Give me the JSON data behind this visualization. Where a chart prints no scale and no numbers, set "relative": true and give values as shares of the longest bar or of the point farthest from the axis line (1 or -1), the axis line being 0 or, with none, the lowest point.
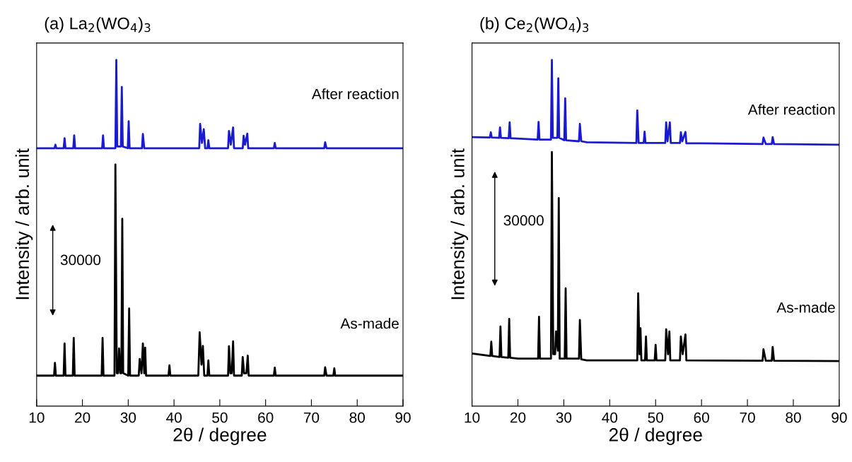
{
  "chart_data": [
    {
      "type": "line",
      "relative": true,
      "title": "(a) La$_{2}$(WO$_{4}$)$_{3}$",
      "xlabel": "2θ / degree",
      "ylabel": "Intensity / arb. unit",
      "xlim": [
        10,
        90
      ],
      "xticks": [
        10,
        20,
        30,
        40,
        50,
        60,
        70,
        80,
        90
      ],
      "annotations": [
        "After reaction",
        "As-made",
        "30000"
      ],
      "series": [
        {
          "color": "#1a1ad0",
          "x": [
            10,
            13.9,
            14.1,
            14.3,
            15.9,
            16.1,
            16.3,
            18.0,
            18.2,
            18.4,
            24.3,
            24.5,
            24.7,
            27.2,
            27.4,
            27.6,
            28.4,
            28.6,
            28.8,
            29.9,
            30.1,
            30.3,
            33.0,
            33.2,
            33.5,
            45.5,
            45.7,
            46.1,
            46.5,
            46.8,
            47.3,
            47.5,
            47.7,
            51.8,
            52.0,
            52.4,
            52.9,
            53.1,
            55.0,
            55.2,
            55.5,
            56.0,
            56.2,
            61.8,
            62.0,
            62.2,
            72.8,
            73.0,
            73.3,
            90
          ],
          "values": [
            0.745,
            0.745,
            0.755,
            0.745,
            0.745,
            0.774,
            0.745,
            0.745,
            0.782,
            0.745,
            0.745,
            0.782,
            0.745,
            0.745,
            1.0,
            0.75,
            0.75,
            0.922,
            0.75,
            0.745,
            0.823,
            0.745,
            0.745,
            0.786,
            0.745,
            0.745,
            0.815,
            0.76,
            0.8,
            0.745,
            0.745,
            0.768,
            0.745,
            0.745,
            0.795,
            0.755,
            0.805,
            0.745,
            0.745,
            0.781,
            0.755,
            0.787,
            0.745,
            0.745,
            0.76,
            0.745,
            0.745,
            0.762,
            0.745,
            0.745
          ]
        },
        {
          "color": "#000000",
          "x": [
            10,
            13.8,
            14.0,
            14.2,
            15.9,
            16.1,
            16.3,
            17.9,
            18.1,
            18.3,
            24.2,
            24.4,
            24.6,
            27.0,
            27.2,
            27.5,
            27.8,
            28.0,
            28.3,
            28.5,
            28.7,
            28.9,
            30.0,
            30.2,
            30.4,
            32.3,
            32.5,
            32.9,
            33.2,
            33.5,
            33.7,
            33.9,
            38.8,
            39.0,
            39.2,
            45.3,
            45.6,
            46.0,
            46.3,
            46.6,
            47.3,
            47.5,
            47.7,
            51.8,
            52.0,
            52.3,
            52.6,
            52.9,
            53.1,
            54.8,
            55.0,
            55.3,
            55.8,
            56.1,
            56.3,
            61.8,
            62.0,
            62.2,
            72.8,
            73.0,
            73.3,
            74.8,
            75.0,
            75.2,
            90
          ],
          "values": [
            0.088,
            0.088,
            0.125,
            0.088,
            0.088,
            0.181,
            0.088,
            0.088,
            0.197,
            0.088,
            0.088,
            0.197,
            0.088,
            0.088,
            0.698,
            0.095,
            0.095,
            0.167,
            0.095,
            0.095,
            0.541,
            0.095,
            0.088,
            0.282,
            0.088,
            0.088,
            0.136,
            0.095,
            0.181,
            0.095,
            0.169,
            0.088,
            0.088,
            0.118,
            0.088,
            0.088,
            0.213,
            0.12,
            0.174,
            0.088,
            0.088,
            0.132,
            0.088,
            0.088,
            0.173,
            0.095,
            0.095,
            0.187,
            0.088,
            0.088,
            0.142,
            0.095,
            0.095,
            0.146,
            0.088,
            0.088,
            0.111,
            0.088,
            0.088,
            0.112,
            0.088,
            0.088,
            0.109,
            0.088,
            0.088
          ]
        }
      ]
    },
    {
      "type": "line",
      "relative": true,
      "title": "(b) Ce$_{2}$(WO$_{4}$)$_{3}$",
      "xlabel": "2θ / degree",
      "ylabel": "Intensity / arb. unit",
      "xlim": [
        10,
        90
      ],
      "xticks": [
        10,
        20,
        30,
        40,
        50,
        60,
        70,
        80,
        90
      ],
      "annotations": [
        "After reaction",
        "As-made",
        "30000"
      ],
      "series": [
        {
          "color": "#1a1ad0",
          "x": [
            10,
            13.9,
            14.1,
            14.3,
            15.9,
            16.1,
            16.3,
            18.0,
            18.2,
            18.4,
            24.3,
            24.5,
            24.7,
            27.2,
            27.4,
            27.6,
            28.6,
            28.8,
            29.0,
            30.1,
            30.3,
            30.5,
            33.3,
            33.5,
            33.8,
            35,
            45.8,
            46.0,
            46.3,
            47.4,
            47.6,
            47.8,
            52.1,
            52.3,
            52.6,
            53.1,
            53.3,
            55.3,
            55.5,
            55.8,
            56.5,
            56.7,
            60,
            73.3,
            73.5,
            74,
            75.3,
            75.5,
            75.8,
            90
          ],
          "values": [
            0.777,
            0.776,
            0.791,
            0.776,
            0.775,
            0.805,
            0.775,
            0.774,
            0.82,
            0.774,
            0.77,
            0.821,
            0.77,
            0.77,
            1.0,
            0.775,
            0.775,
            0.947,
            0.775,
            0.768,
            0.889,
            0.768,
            0.765,
            0.815,
            0.765,
            0.762,
            0.76,
            0.854,
            0.76,
            0.76,
            0.793,
            0.76,
            0.76,
            0.82,
            0.765,
            0.82,
            0.76,
            0.76,
            0.791,
            0.765,
            0.792,
            0.759,
            0.759,
            0.757,
            0.776,
            0.757,
            0.757,
            0.777,
            0.757,
            0.755
          ]
        },
        {
          "color": "#000000",
          "x": [
            10,
            14.0,
            14.2,
            14.4,
            16.0,
            16.2,
            16.4,
            17.9,
            18.1,
            18.3,
            20,
            24.4,
            24.6,
            24.8,
            27.2,
            27.4,
            27.7,
            28.1,
            28.3,
            28.7,
            28.9,
            29.1,
            30.2,
            30.4,
            30.6,
            33.3,
            33.5,
            33.8,
            35,
            46.0,
            46.2,
            46.5,
            46.7,
            46.9,
            47.7,
            47.9,
            48.1,
            49.8,
            50.0,
            50.2,
            52.1,
            52.3,
            52.7,
            53.0,
            53.2,
            55.3,
            55.5,
            55.9,
            56.5,
            56.7,
            73.3,
            73.5,
            74,
            75.3,
            75.5,
            75.8,
            90
          ],
          "values": [
            0.152,
            0.145,
            0.186,
            0.145,
            0.142,
            0.23,
            0.142,
            0.14,
            0.252,
            0.14,
            0.137,
            0.137,
            0.258,
            0.137,
            0.137,
            0.734,
            0.15,
            0.15,
            0.216,
            0.16,
            0.601,
            0.137,
            0.137,
            0.34,
            0.137,
            0.137,
            0.249,
            0.135,
            0.132,
            0.132,
            0.326,
            0.15,
            0.225,
            0.132,
            0.132,
            0.201,
            0.132,
            0.132,
            0.177,
            0.132,
            0.132,
            0.222,
            0.15,
            0.216,
            0.132,
            0.132,
            0.201,
            0.15,
            0.207,
            0.132,
            0.131,
            0.164,
            0.131,
            0.131,
            0.171,
            0.131,
            0.13
          ]
        }
      ]
    }
  ]
}
